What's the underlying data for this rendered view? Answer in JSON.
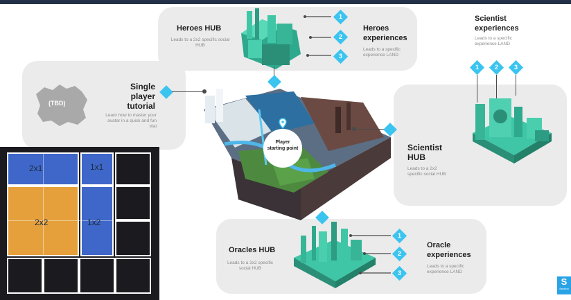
{
  "heroes_hub": {
    "title": "Heroes HUB",
    "desc": "Leads to a 2x2 specific social HUB"
  },
  "heroes_exp": {
    "title": "Heroes experiences",
    "desc": "Leads to a specific experience LAND"
  },
  "single_player": {
    "title": "Single player tutorial",
    "desc": "Learn how to master your avatar in a quick and fun trial",
    "map_label": "(TBD)"
  },
  "scientist_exp": {
    "title": "Scientist experiences",
    "desc": "Leads to a specific experience LAND"
  },
  "scientist_hub": {
    "title": "Scientist HUB",
    "desc": "Leads to a 2x2 specific social HUB"
  },
  "center": {
    "label": "Player starting point"
  },
  "oracles_hub": {
    "title": "Oracles HUB",
    "desc": "Leads to a 2x2 specific social HUB"
  },
  "oracle_exp": {
    "title": "Oracle experiences",
    "desc": "Leads to a specific experience LAND"
  },
  "numbers": [
    "1",
    "2",
    "3"
  ],
  "grid_labels": {
    "a": "2x1",
    "b": "1x1",
    "c": "2x2",
    "d": "1x2"
  },
  "logo": {
    "glyph": "S",
    "caption": "Sandbox"
  },
  "colors": {
    "accent": "#3bc4f0",
    "teal": "#3fc6a6",
    "card": "#ebebeb",
    "blue": "#3f67c9",
    "orange": "#e5a03c"
  }
}
